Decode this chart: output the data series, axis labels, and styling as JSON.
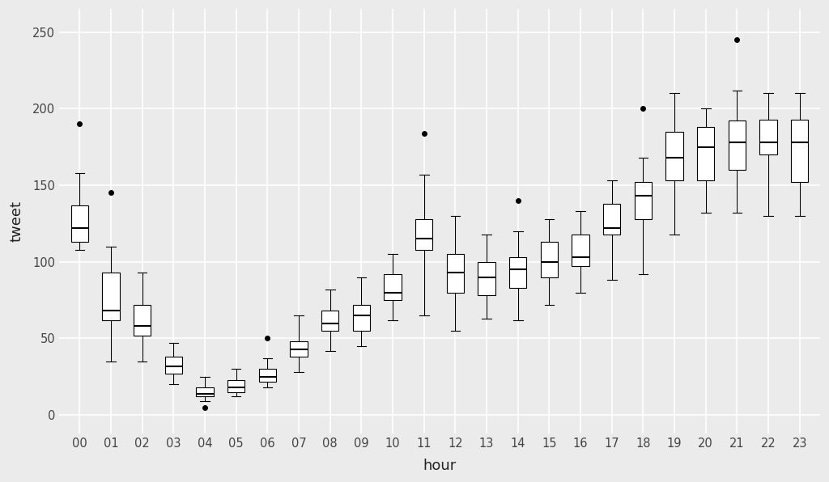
{
  "hours": [
    "00",
    "01",
    "02",
    "03",
    "04",
    "05",
    "06",
    "07",
    "08",
    "09",
    "10",
    "11",
    "12",
    "13",
    "14",
    "15",
    "16",
    "17",
    "18",
    "19",
    "20",
    "21",
    "22",
    "23"
  ],
  "boxes": [
    {
      "whislo": 108,
      "q1": 113,
      "med": 122,
      "q3": 137,
      "whishi": 158,
      "fliers": [
        190
      ]
    },
    {
      "whislo": 35,
      "q1": 62,
      "med": 68,
      "q3": 93,
      "whishi": 110,
      "fliers": [
        145
      ]
    },
    {
      "whislo": 35,
      "q1": 52,
      "med": 58,
      "q3": 72,
      "whishi": 93,
      "fliers": []
    },
    {
      "whislo": 20,
      "q1": 27,
      "med": 32,
      "q3": 38,
      "whishi": 47,
      "fliers": []
    },
    {
      "whislo": 9,
      "q1": 12,
      "med": 14,
      "q3": 18,
      "whishi": 25,
      "fliers": [
        5
      ]
    },
    {
      "whislo": 12,
      "q1": 15,
      "med": 18,
      "q3": 23,
      "whishi": 30,
      "fliers": []
    },
    {
      "whislo": 18,
      "q1": 22,
      "med": 25,
      "q3": 30,
      "whishi": 37,
      "fliers": [
        50
      ]
    },
    {
      "whislo": 28,
      "q1": 38,
      "med": 43,
      "q3": 48,
      "whishi": 65,
      "fliers": []
    },
    {
      "whislo": 42,
      "q1": 55,
      "med": 60,
      "q3": 68,
      "whishi": 82,
      "fliers": []
    },
    {
      "whislo": 45,
      "q1": 55,
      "med": 65,
      "q3": 72,
      "whishi": 90,
      "fliers": []
    },
    {
      "whislo": 62,
      "q1": 75,
      "med": 80,
      "q3": 92,
      "whishi": 105,
      "fliers": []
    },
    {
      "whislo": 65,
      "q1": 108,
      "med": 115,
      "q3": 128,
      "whishi": 157,
      "fliers": [
        184
      ]
    },
    {
      "whislo": 55,
      "q1": 80,
      "med": 93,
      "q3": 105,
      "whishi": 130,
      "fliers": []
    },
    {
      "whislo": 63,
      "q1": 78,
      "med": 90,
      "q3": 100,
      "whishi": 118,
      "fliers": []
    },
    {
      "whislo": 62,
      "q1": 83,
      "med": 95,
      "q3": 103,
      "whishi": 120,
      "fliers": [
        140
      ]
    },
    {
      "whislo": 72,
      "q1": 90,
      "med": 100,
      "q3": 113,
      "whishi": 128,
      "fliers": []
    },
    {
      "whislo": 80,
      "q1": 97,
      "med": 103,
      "q3": 118,
      "whishi": 133,
      "fliers": []
    },
    {
      "whislo": 88,
      "q1": 118,
      "med": 122,
      "q3": 138,
      "whishi": 153,
      "fliers": []
    },
    {
      "whislo": 92,
      "q1": 128,
      "med": 143,
      "q3": 152,
      "whishi": 168,
      "fliers": [
        200
      ]
    },
    {
      "whislo": 118,
      "q1": 153,
      "med": 168,
      "q3": 185,
      "whishi": 210,
      "fliers": []
    },
    {
      "whislo": 132,
      "q1": 153,
      "med": 175,
      "q3": 188,
      "whishi": 200,
      "fliers": []
    },
    {
      "whislo": 132,
      "q1": 160,
      "med": 178,
      "q3": 192,
      "whishi": 212,
      "fliers": [
        245
      ]
    },
    {
      "whislo": 130,
      "q1": 170,
      "med": 178,
      "q3": 193,
      "whishi": 210,
      "fliers": []
    },
    {
      "whislo": 130,
      "q1": 152,
      "med": 178,
      "q3": 193,
      "whishi": 210,
      "fliers": []
    }
  ],
  "xlabel": "hour",
  "ylabel": "tweet",
  "ylim": [
    -12,
    265
  ],
  "yticks": [
    0,
    50,
    100,
    150,
    200,
    250
  ],
  "bg_color": "#EBEBEB",
  "box_fill": "#FFFFFF",
  "box_edge": "#000000",
  "median_color": "#000000",
  "whisker_color": "#000000",
  "flier_color": "#000000",
  "grid_color": "#FFFFFF",
  "axis_text_color": "#444444",
  "axis_label_color": "#222222"
}
